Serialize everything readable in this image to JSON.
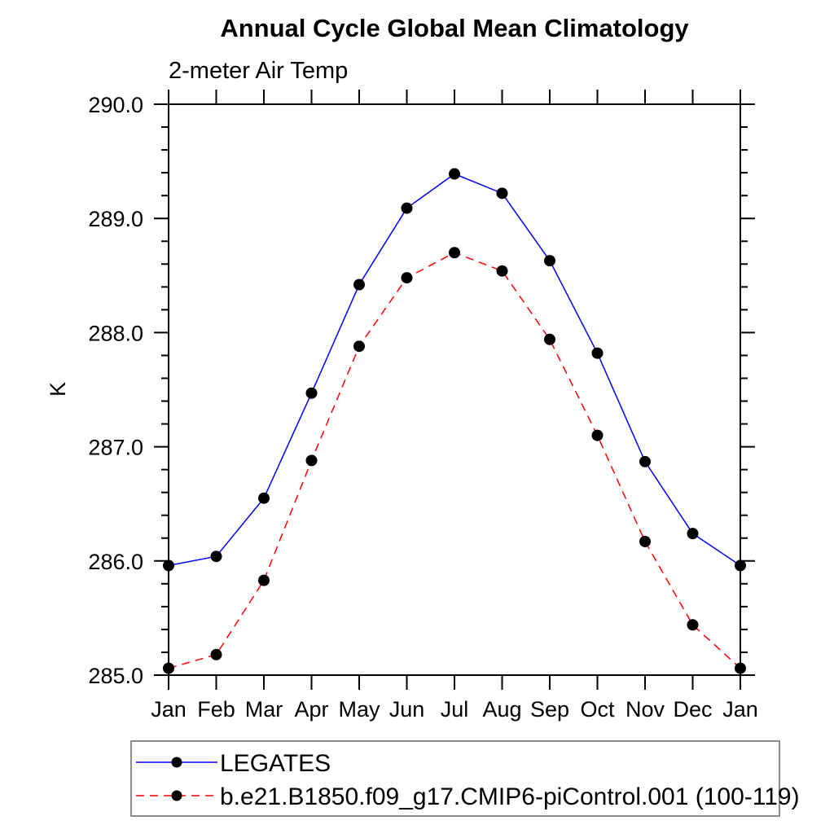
{
  "chart_data": {
    "type": "line",
    "title": "Annual Cycle Global Mean Climatology",
    "subtitle": "2-meter Air Temp",
    "xlabel": "",
    "ylabel": "K",
    "ylim": [
      285.0,
      290.0
    ],
    "y_major_step": 1.0,
    "y_minor_step": 0.2,
    "y_tick_labels": [
      "285.0",
      "286.0",
      "287.0",
      "288.0",
      "289.0",
      "290.0"
    ],
    "categories": [
      "Jan",
      "Feb",
      "Mar",
      "Apr",
      "May",
      "Jun",
      "Jul",
      "Aug",
      "Sep",
      "Oct",
      "Nov",
      "Dec",
      "Jan"
    ],
    "grid": false,
    "legend_position": "bottom",
    "colors": {
      "axis": "#000000",
      "marker": "#000000",
      "legend_border": "#8c8c8c",
      "series_1": "#0000ff",
      "series_2": "#ff0000"
    },
    "series": [
      {
        "name": "LEGATES",
        "color": "#0000ff",
        "line_style": "solid",
        "marker": "circle",
        "marker_color": "#000000",
        "values": [
          285.96,
          286.04,
          286.55,
          287.47,
          288.42,
          289.09,
          289.39,
          289.22,
          288.63,
          287.82,
          286.87,
          286.24,
          285.96
        ]
      },
      {
        "name": "b.e21.B1850.f09_g17.CMIP6-piControl.001 (100-119)",
        "color": "#ff0000",
        "line_style": "dashed",
        "marker": "circle",
        "marker_color": "#000000",
        "values": [
          285.06,
          285.18,
          285.83,
          286.88,
          287.88,
          288.48,
          288.7,
          288.54,
          287.94,
          287.1,
          286.17,
          285.44,
          285.06
        ]
      }
    ]
  }
}
